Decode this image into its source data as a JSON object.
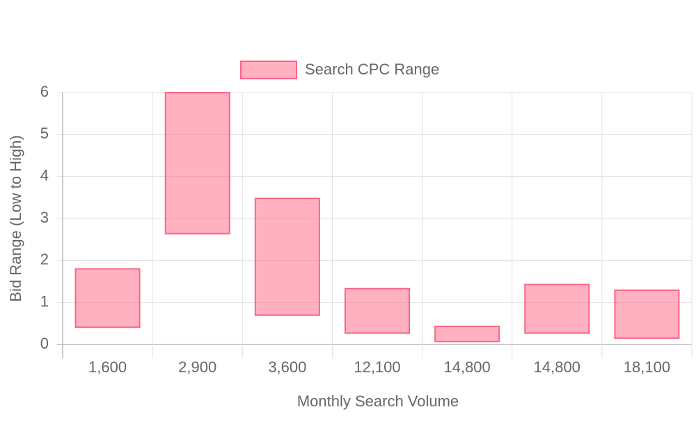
{
  "chart_data": {
    "type": "floating-bar",
    "x_label": "Monthly Search Volume",
    "y_label": "Bid Range (Low to High)",
    "categories": [
      "1,600",
      "2,900",
      "3,600",
      "12,100",
      "14,800",
      "14,800",
      "18,100"
    ],
    "series": [
      {
        "name": "Search CPC Range",
        "color": "#ff6384",
        "values": [
          [
            0.41,
            1.8
          ],
          [
            2.64,
            6
          ],
          [
            0.7,
            3.48
          ],
          [
            0.27,
            1.33
          ],
          [
            0.07,
            0.43
          ],
          [
            0.27,
            1.43
          ],
          [
            0.15,
            1.29
          ]
        ]
      }
    ],
    "ylim": [
      0,
      6
    ],
    "yticks": [
      0,
      1,
      2,
      3,
      4,
      5,
      6
    ],
    "grid": true,
    "legend": "top"
  }
}
